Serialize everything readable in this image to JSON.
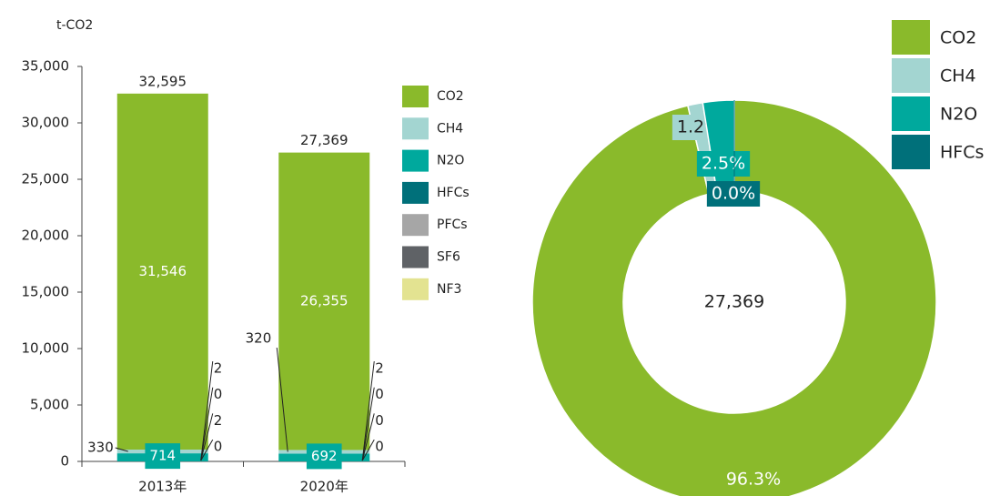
{
  "chart_data": [
    {
      "type": "stacked-bar",
      "ylabel": "t-CO2",
      "categories": [
        "2013年",
        "2020年"
      ],
      "series": [
        {
          "name": "CO2",
          "color": "#8aba2b",
          "values": [
            31546,
            26355
          ],
          "value_labels": [
            "31,546",
            "26,355"
          ]
        },
        {
          "name": "CH4",
          "color": "#a3d5d1",
          "values": [
            330,
            320
          ]
        },
        {
          "name": "N2O",
          "color": "#00a99d",
          "values": [
            714,
            692
          ]
        },
        {
          "name": "HFCs",
          "color": "#00707a",
          "values": [
            2,
            2
          ]
        },
        {
          "name": "PFCs",
          "color": "#a6a6a6",
          "values": [
            0,
            0
          ]
        },
        {
          "name": "SF6",
          "color": "#5f6266",
          "values": [
            2,
            0
          ]
        },
        {
          "name": "NF3",
          "color": "#e3e391",
          "values": [
            0,
            0
          ]
        }
      ],
      "totals": [
        32595,
        27369
      ],
      "total_labels": [
        "32,595",
        "27,369"
      ],
      "ylim": [
        0,
        35000
      ],
      "yticks": [
        0,
        {
          "value": 5000,
          "label": "5,000"
        },
        {
          "value": 10000,
          "label": "10,000"
        },
        {
          "value": 15000,
          "label": "15,000"
        },
        {
          "value": 20000,
          "label": "20,000"
        },
        {
          "value": 25000,
          "label": "25,000"
        },
        {
          "value": 30000,
          "label": "30,000"
        },
        {
          "value": 35000,
          "label": "35,000"
        }
      ]
    },
    {
      "type": "donut",
      "center_label": "27,369",
      "series": [
        {
          "name": "CO2",
          "color": "#8aba2b",
          "values": [
            96.3
          ],
          "value_labels": [
            "96.3%"
          ]
        },
        {
          "name": "CH4",
          "color": "#a3d5d1",
          "values": [
            1.2
          ],
          "value_labels": [
            "1.2%"
          ]
        },
        {
          "name": "N2O",
          "color": "#00a99d",
          "values": [
            2.5
          ],
          "value_labels": [
            "2.5%"
          ]
        },
        {
          "name": "HFCs",
          "color": "#00707a",
          "values": [
            0.0
          ],
          "value_labels": [
            "0.0%"
          ]
        }
      ]
    }
  ]
}
